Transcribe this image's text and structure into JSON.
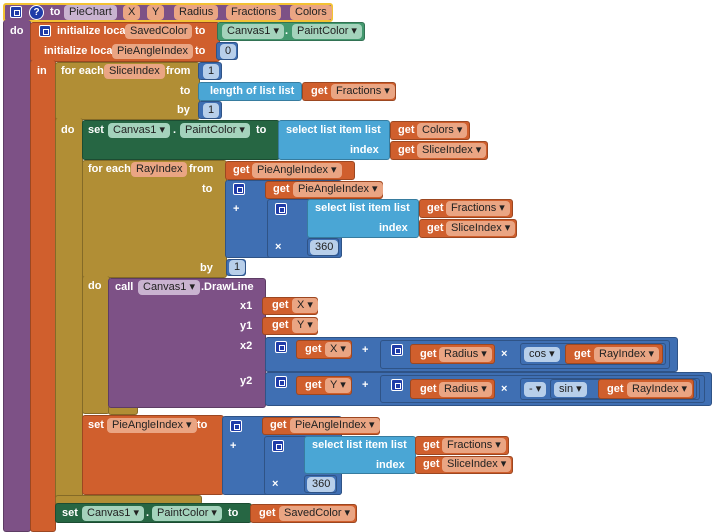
{
  "colors": {
    "procedure": "#7d5186",
    "variable": "#d05f2d",
    "control": "#b18e35",
    "component_set": "#266643",
    "component_get": "#43996f",
    "math": "#3f6fb3",
    "lists": "#4aa6d5"
  },
  "proc": {
    "to": "to",
    "name": "PieChart",
    "params": [
      "X",
      "Y",
      "Radius",
      "Fractions",
      "Colors"
    ],
    "do": "do",
    "help": "?"
  },
  "local": {
    "init1": "initialize local",
    "var1": "SavedColor",
    "to": "to",
    "init2": "initialize local",
    "var2": "PieAngleIndex",
    "in": "in",
    "zero": "0"
  },
  "comp": {
    "canvas": "Canvas1 ▾",
    "dot": ".",
    "paint": "PaintColor ▾"
  },
  "outer": {
    "foreach": "for each",
    "var": "SliceIndex",
    "from": "from",
    "to": "to",
    "by": "by",
    "do": "do",
    "from_val": "1",
    "by_val": "1",
    "length": "length of list  list"
  },
  "set": "set",
  "get": "get",
  "vars": {
    "fractions": "Fractions ▾",
    "colors": "Colors ▾",
    "slice": "SliceIndex ▾",
    "pai": "PieAngleIndex ▾",
    "x": "X ▾",
    "y": "Y ▾",
    "radius": "Radius ▾",
    "ray": "RayIndex ▾",
    "saved": "SavedColor ▾",
    "pai_set": "PieAngleIndex ▾"
  },
  "select": {
    "label": "select list item  list",
    "index": "index"
  },
  "inner": {
    "foreach": "for each",
    "var": "RayIndex",
    "from": "from",
    "to": "to",
    "by": "by",
    "do": "do",
    "by_val": "1"
  },
  "math": {
    "plus": "+",
    "times": "×",
    "n360": "360",
    "cos": "cos ▾",
    "sin": "sin ▾",
    "neg": "- ▾"
  },
  "draw": {
    "call": "call",
    "canvas": "Canvas1 ▾",
    "method": ".DrawLine",
    "x1": "x1",
    "y1": "y1",
    "x2": "x2",
    "y2": "y2"
  }
}
